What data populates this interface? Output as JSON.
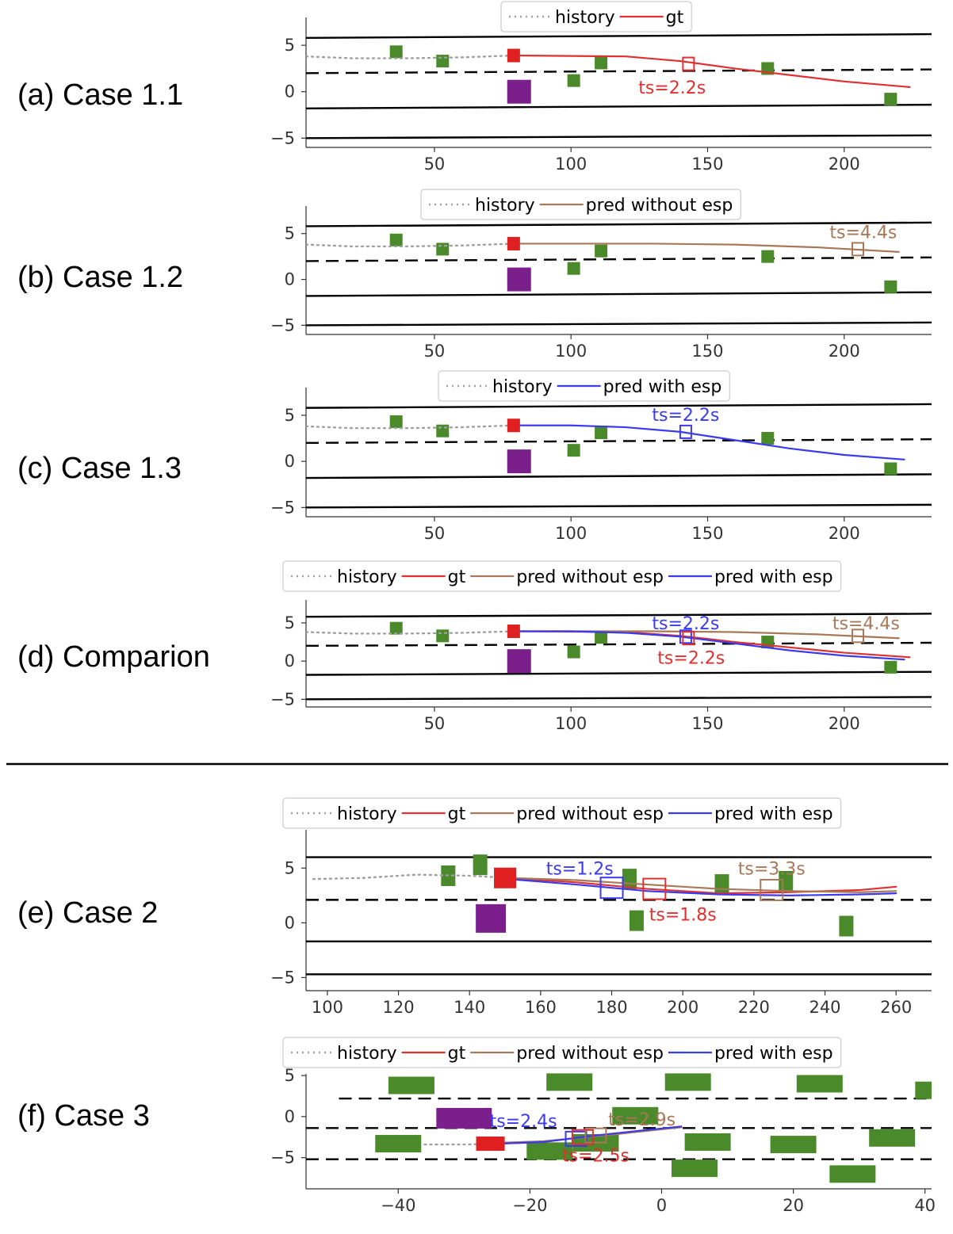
{
  "colors": {
    "history": "#a0a0a0",
    "gt": "#e03030",
    "pred_without_esp": "#a87858",
    "pred_with_esp": "#3a3aee",
    "neighbor": "#4a8a2a",
    "ego": "#e02020",
    "target": "#7a1f8c",
    "lane": "#000000"
  },
  "chart_data": [
    {
      "type": "line",
      "case_label": "(a) Case 1.1",
      "legend": [
        "history",
        "gt"
      ],
      "xlim": [
        3,
        232
      ],
      "ylim": [
        -6,
        8
      ],
      "xticks": [
        50,
        100,
        150,
        200
      ],
      "yticks": [
        -5,
        0,
        5
      ],
      "lanes": [
        {
          "style": "solid",
          "points": [
            [
              3,
              5.8
            ],
            [
              232,
              6.2
            ]
          ]
        },
        {
          "style": "dashed",
          "points": [
            [
              3,
              2.0
            ],
            [
              232,
              2.4
            ]
          ]
        },
        {
          "style": "solid",
          "points": [
            [
              3,
              -1.8
            ],
            [
              232,
              -1.4
            ]
          ]
        },
        {
          "style": "solid",
          "points": [
            [
              3,
              -5.0
            ],
            [
              232,
              -4.7
            ]
          ]
        }
      ],
      "series": [
        {
          "name": "history",
          "x": [
            3,
            20,
            40,
            60,
            79
          ],
          "y": [
            3.8,
            3.6,
            3.6,
            3.7,
            3.9
          ]
        },
        {
          "name": "gt",
          "x": [
            79,
            100,
            120,
            140,
            160,
            180,
            200,
            224
          ],
          "y": [
            3.9,
            3.85,
            3.8,
            3.3,
            2.5,
            1.8,
            1.1,
            0.5
          ]
        }
      ],
      "ego": {
        "x": 79,
        "y": 3.9
      },
      "target_vehicle": {
        "x": 81,
        "y": 0
      },
      "neighbors": [
        [
          36,
          4.3
        ],
        [
          53,
          3.3
        ],
        [
          101,
          1.2
        ],
        [
          111,
          3.1
        ],
        [
          172,
          2.5
        ],
        [
          217,
          -0.8
        ]
      ],
      "annotations": [
        {
          "series": "gt",
          "text": "ts=2.2s",
          "x": 143,
          "y": 3.0,
          "label_x": 137,
          "label_y": 0.5
        }
      ]
    },
    {
      "type": "line",
      "case_label": "(b) Case 1.2",
      "legend": [
        "history",
        "pred without esp"
      ],
      "xlim": [
        3,
        232
      ],
      "ylim": [
        -6,
        8
      ],
      "xticks": [
        50,
        100,
        150,
        200
      ],
      "yticks": [
        -5,
        0,
        5
      ],
      "lanes": [
        {
          "style": "solid",
          "points": [
            [
              3,
              5.8
            ],
            [
              232,
              6.2
            ]
          ]
        },
        {
          "style": "dashed",
          "points": [
            [
              3,
              2.0
            ],
            [
              232,
              2.4
            ]
          ]
        },
        {
          "style": "solid",
          "points": [
            [
              3,
              -1.8
            ],
            [
              232,
              -1.4
            ]
          ]
        },
        {
          "style": "solid",
          "points": [
            [
              3,
              -5.0
            ],
            [
              232,
              -4.7
            ]
          ]
        }
      ],
      "series": [
        {
          "name": "history",
          "x": [
            3,
            20,
            40,
            60,
            79
          ],
          "y": [
            3.8,
            3.6,
            3.6,
            3.7,
            3.9
          ]
        },
        {
          "name": "pred without esp",
          "x": [
            79,
            100,
            130,
            160,
            190,
            220
          ],
          "y": [
            3.9,
            3.9,
            3.9,
            3.8,
            3.5,
            3.0
          ]
        }
      ],
      "ego": {
        "x": 79,
        "y": 3.9
      },
      "target_vehicle": {
        "x": 81,
        "y": 0
      },
      "neighbors": [
        [
          36,
          4.3
        ],
        [
          53,
          3.3
        ],
        [
          101,
          1.2
        ],
        [
          111,
          3.1
        ],
        [
          172,
          2.5
        ],
        [
          217,
          -0.8
        ]
      ],
      "annotations": [
        {
          "series": "pred without esp",
          "text": "ts=4.4s",
          "x": 205,
          "y": 3.3,
          "label_x": 207,
          "label_y": 5.2
        }
      ]
    },
    {
      "type": "line",
      "case_label": "(c) Case 1.3",
      "legend": [
        "history",
        "pred with esp"
      ],
      "xlim": [
        3,
        232
      ],
      "ylim": [
        -6,
        8
      ],
      "xticks": [
        50,
        100,
        150,
        200
      ],
      "yticks": [
        -5,
        0,
        5
      ],
      "lanes": [
        {
          "style": "solid",
          "points": [
            [
              3,
              5.8
            ],
            [
              232,
              6.2
            ]
          ]
        },
        {
          "style": "dashed",
          "points": [
            [
              3,
              2.0
            ],
            [
              232,
              2.4
            ]
          ]
        },
        {
          "style": "solid",
          "points": [
            [
              3,
              -1.8
            ],
            [
              232,
              -1.4
            ]
          ]
        },
        {
          "style": "solid",
          "points": [
            [
              3,
              -5.0
            ],
            [
              232,
              -4.7
            ]
          ]
        }
      ],
      "series": [
        {
          "name": "history",
          "x": [
            3,
            20,
            40,
            60,
            79
          ],
          "y": [
            3.8,
            3.6,
            3.6,
            3.7,
            3.9
          ]
        },
        {
          "name": "pred with esp",
          "x": [
            79,
            100,
            120,
            140,
            160,
            180,
            200,
            222
          ],
          "y": [
            3.9,
            3.9,
            3.7,
            3.2,
            2.3,
            1.4,
            0.7,
            0.2
          ]
        }
      ],
      "ego": {
        "x": 79,
        "y": 3.9
      },
      "target_vehicle": {
        "x": 81,
        "y": 0
      },
      "neighbors": [
        [
          36,
          4.3
        ],
        [
          53,
          3.3
        ],
        [
          101,
          1.2
        ],
        [
          111,
          3.1
        ],
        [
          172,
          2.5
        ],
        [
          217,
          -0.8
        ]
      ],
      "annotations": [
        {
          "series": "pred with esp",
          "text": "ts=2.2s",
          "x": 142,
          "y": 3.2,
          "label_x": 142,
          "label_y": 5.1
        }
      ]
    },
    {
      "type": "line",
      "case_label": "(d) Comparion",
      "legend": [
        "history",
        "gt",
        "pred without esp",
        "pred with esp"
      ],
      "xlim": [
        3,
        232
      ],
      "ylim": [
        -6,
        8
      ],
      "xticks": [
        50,
        100,
        150,
        200
      ],
      "yticks": [
        -5,
        0,
        5
      ],
      "lanes": [
        {
          "style": "solid",
          "points": [
            [
              3,
              5.8
            ],
            [
              232,
              6.2
            ]
          ]
        },
        {
          "style": "dashed",
          "points": [
            [
              3,
              2.0
            ],
            [
              232,
              2.4
            ]
          ]
        },
        {
          "style": "solid",
          "points": [
            [
              3,
              -1.8
            ],
            [
              232,
              -1.4
            ]
          ]
        },
        {
          "style": "solid",
          "points": [
            [
              3,
              -5.0
            ],
            [
              232,
              -4.7
            ]
          ]
        }
      ],
      "series": [
        {
          "name": "history",
          "x": [
            3,
            20,
            40,
            60,
            79
          ],
          "y": [
            3.8,
            3.6,
            3.6,
            3.7,
            3.9
          ]
        },
        {
          "name": "gt",
          "x": [
            79,
            100,
            120,
            140,
            160,
            180,
            200,
            224
          ],
          "y": [
            3.9,
            3.85,
            3.8,
            3.3,
            2.5,
            1.8,
            1.1,
            0.5
          ]
        },
        {
          "name": "pred without esp",
          "x": [
            79,
            100,
            130,
            160,
            190,
            220
          ],
          "y": [
            3.9,
            3.9,
            3.9,
            3.8,
            3.5,
            3.0
          ]
        },
        {
          "name": "pred with esp",
          "x": [
            79,
            100,
            120,
            140,
            160,
            180,
            200,
            222
          ],
          "y": [
            3.9,
            3.9,
            3.7,
            3.2,
            2.3,
            1.4,
            0.7,
            0.2
          ]
        }
      ],
      "ego": {
        "x": 79,
        "y": 3.9
      },
      "target_vehicle": {
        "x": 81,
        "y": 0
      },
      "neighbors": [
        [
          36,
          4.3
        ],
        [
          53,
          3.3
        ],
        [
          101,
          1.2
        ],
        [
          111,
          3.1
        ],
        [
          172,
          2.5
        ],
        [
          217,
          -0.8
        ]
      ],
      "annotations": [
        {
          "series": "pred with esp",
          "text": "ts=2.2s",
          "x": 142,
          "y": 3.2,
          "label_x": 142,
          "label_y": 5.0
        },
        {
          "series": "gt",
          "text": "ts=2.2s",
          "x": 143,
          "y": 3.0,
          "label_x": 144,
          "label_y": 0.5
        },
        {
          "series": "pred without esp",
          "text": "ts=4.4s",
          "x": 205,
          "y": 3.3,
          "label_x": 208,
          "label_y": 5.0
        }
      ]
    },
    {
      "type": "line",
      "case_label": "(e) Case 2",
      "legend": [
        "history",
        "gt",
        "pred without esp",
        "pred with esp"
      ],
      "xlim": [
        94,
        270
      ],
      "ylim": [
        -6.2,
        8.5
      ],
      "xticks": [
        100,
        120,
        140,
        160,
        180,
        200,
        220,
        240,
        260
      ],
      "yticks": [
        -5,
        0,
        5
      ],
      "lanes": [
        {
          "style": "solid",
          "points": [
            [
              94,
              6.0
            ],
            [
              270,
              6.0
            ]
          ]
        },
        {
          "style": "dashed",
          "points": [
            [
              94,
              2.1
            ],
            [
              270,
              2.1
            ]
          ]
        },
        {
          "style": "solid",
          "points": [
            [
              94,
              -1.7
            ],
            [
              270,
              -1.7
            ]
          ]
        },
        {
          "style": "solid",
          "points": [
            [
              94,
              -4.7
            ],
            [
              270,
              -4.7
            ]
          ]
        }
      ],
      "series": [
        {
          "name": "history",
          "x": [
            96,
            110,
            125,
            140,
            151
          ],
          "y": [
            4.0,
            4.1,
            4.4,
            4.3,
            4.1
          ]
        },
        {
          "name": "gt",
          "x": [
            151,
            170,
            190,
            210,
            230,
            250,
            260
          ],
          "y": [
            4.1,
            3.7,
            3.1,
            2.7,
            2.8,
            3.0,
            3.3
          ]
        },
        {
          "name": "pred without esp",
          "x": [
            151,
            170,
            190,
            210,
            230,
            250,
            260
          ],
          "y": [
            4.1,
            3.9,
            3.5,
            3.1,
            2.9,
            2.8,
            2.9
          ]
        },
        {
          "name": "pred with esp",
          "x": [
            151,
            170,
            190,
            210,
            230,
            250,
            260
          ],
          "y": [
            4.0,
            3.5,
            2.9,
            2.6,
            2.5,
            2.6,
            2.7
          ]
        }
      ],
      "ego": {
        "x": 150,
        "y": 4.1
      },
      "target_vehicle": {
        "x": 146,
        "y": 0.4
      },
      "neighbors": [
        [
          134,
          4.3
        ],
        [
          143,
          5.3
        ],
        [
          185,
          4.0
        ],
        [
          187,
          0.2
        ],
        [
          211,
          3.5
        ],
        [
          229,
          3.8
        ],
        [
          246,
          -0.3
        ]
      ],
      "annotations": [
        {
          "series": "pred with esp",
          "text": "ts=1.2s",
          "x": 180,
          "y": 3.2,
          "label_x": 171,
          "label_y": 5.0
        },
        {
          "series": "gt",
          "text": "ts=1.8s",
          "x": 192,
          "y": 3.1,
          "label_x": 200,
          "label_y": 0.8
        },
        {
          "series": "pred without esp",
          "text": "ts=3.3s",
          "x": 225,
          "y": 3.0,
          "label_x": 225,
          "label_y": 5.0
        }
      ]
    },
    {
      "type": "line",
      "case_label": "(f) Case 3",
      "legend": [
        "history",
        "gt",
        "pred without esp",
        "pred with esp"
      ],
      "xlim": [
        -54,
        41
      ],
      "ylim": [
        -8.8,
        5.2
      ],
      "xticks": [
        -40,
        -20,
        0,
        20,
        40
      ],
      "yticks": [
        -5,
        0,
        5
      ],
      "lanes": [
        {
          "style": "dashed",
          "points": [
            [
              -49,
              2.2
            ],
            [
              41,
              2.2
            ]
          ]
        },
        {
          "style": "dashed",
          "points": [
            [
              -54,
              -1.4
            ],
            [
              41,
              -1.4
            ]
          ]
        },
        {
          "style": "dashed",
          "points": [
            [
              -54,
              -5.2
            ],
            [
              41,
              -5.2
            ]
          ]
        }
      ],
      "series": [
        {
          "name": "history",
          "x": [
            -36,
            -30,
            -25
          ],
          "y": [
            -3.4,
            -3.4,
            -3.3
          ]
        },
        {
          "name": "gt",
          "x": [
            -25,
            -18,
            -10,
            -3,
            3
          ],
          "y": [
            -3.3,
            -3.1,
            -2.3,
            -1.7,
            -1.3
          ]
        },
        {
          "name": "pred without esp",
          "x": [
            -25,
            -18,
            -10,
            -3,
            3
          ],
          "y": [
            -3.2,
            -3.0,
            -2.4,
            -1.8,
            -1.3
          ]
        },
        {
          "name": "pred with esp",
          "x": [
            -25,
            -18,
            -10,
            -3,
            3
          ],
          "y": [
            -3.3,
            -3.1,
            -2.3,
            -1.7,
            -1.2
          ]
        }
      ],
      "ego": {
        "x": -26,
        "y": -3.3
      },
      "target_vehicle": {
        "x": -30,
        "y": -0.2
      },
      "neighbors": [
        [
          -38,
          3.8
        ],
        [
          -14,
          4.2
        ],
        [
          4,
          4.2
        ],
        [
          24,
          4.0
        ],
        [
          42,
          3.2
        ],
        [
          -4,
          0.1
        ],
        [
          -40,
          -3.3
        ],
        [
          -17,
          -4.2
        ],
        [
          -10,
          -3.2
        ],
        [
          7,
          -3.1
        ],
        [
          20,
          -3.4
        ],
        [
          35,
          -2.6
        ],
        [
          5,
          -6.3
        ],
        [
          29,
          -7.0
        ]
      ],
      "annotations": [
        {
          "series": "pred with esp",
          "text": "ts=2.4s",
          "x": -13,
          "y": -2.7,
          "label_x": -21,
          "label_y": -0.5
        },
        {
          "series": "pred without esp",
          "text": "ts=2.9s",
          "x": -10,
          "y": -2.3,
          "label_x": -3,
          "label_y": -0.3
        },
        {
          "series": "gt",
          "text": "ts=2.5s",
          "x": -12,
          "y": -2.5,
          "label_x": -10,
          "label_y": -4.7
        }
      ]
    }
  ]
}
